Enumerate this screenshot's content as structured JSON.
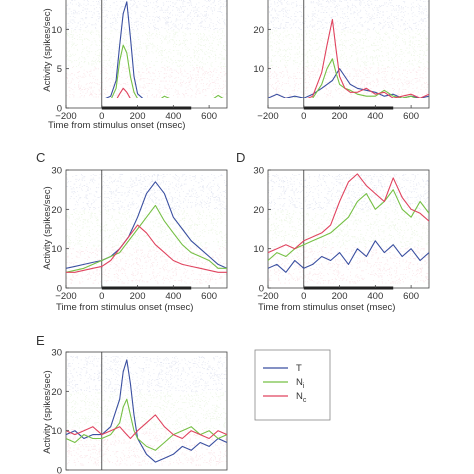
{
  "chart_data": [
    {
      "type": "line",
      "panel_label": "",
      "ylabel": "Activity (spikes/sec)",
      "xlabel": "Time from stimulus onset (msec)",
      "xlim": [
        -200,
        700
      ],
      "ylim": [
        0,
        15
      ],
      "xticks": [
        "−200",
        "0",
        "200",
        "400",
        "600"
      ],
      "yticks": [
        "0",
        "5",
        "10"
      ],
      "stimulus_bar": [
        0,
        500
      ],
      "x": [
        -200,
        -150,
        -100,
        -50,
        0,
        50,
        80,
        100,
        120,
        140,
        160,
        180,
        200,
        250,
        300,
        350,
        400,
        450,
        500,
        550,
        600,
        650,
        700
      ],
      "series": [
        {
          "name": "T",
          "color": "#3a4fa0",
          "values": [
            1.0,
            0.8,
            1.1,
            0.7,
            1.0,
            1.5,
            3.5,
            8.0,
            12.0,
            13.5,
            9.0,
            4.0,
            1.8,
            0.8,
            0.6,
            0.8,
            0.9,
            0.7,
            1.0,
            0.6,
            0.8,
            1.0,
            0.7
          ]
        },
        {
          "name": "Ni",
          "color": "#76c045",
          "values": [
            0.6,
            0.8,
            0.5,
            0.7,
            0.8,
            1.0,
            2.5,
            6.0,
            8.0,
            7.0,
            4.0,
            2.0,
            1.2,
            0.8,
            0.7,
            1.5,
            1.0,
            0.6,
            0.9,
            0.7,
            0.8,
            1.6,
            0.9
          ]
        },
        {
          "name": "Nc",
          "color": "#e0445f",
          "values": [
            0.3,
            0.4,
            0.3,
            0.5,
            0.4,
            0.6,
            1.0,
            1.8,
            2.5,
            2.0,
            1.2,
            0.8,
            0.6,
            0.5,
            0.7,
            0.6,
            0.5,
            0.8,
            0.4,
            0.6,
            0.5,
            0.4,
            0.6
          ]
        }
      ]
    },
    {
      "type": "line",
      "panel_label": "",
      "ylabel": "",
      "xlabel": "",
      "xlim": [
        -200,
        700
      ],
      "ylim": [
        0,
        30
      ],
      "xticks": [
        "−200",
        "0",
        "200",
        "400",
        "600"
      ],
      "yticks": [
        "10",
        "20"
      ],
      "stimulus_bar": [
        0,
        500
      ],
      "x": [
        -200,
        -150,
        -100,
        -50,
        0,
        50,
        100,
        130,
        160,
        180,
        200,
        230,
        260,
        300,
        350,
        400,
        450,
        500,
        550,
        600,
        650,
        700
      ],
      "series": [
        {
          "name": "T",
          "color": "#3a4fa0",
          "values": [
            2.5,
            3.5,
            2.5,
            3.0,
            2.5,
            3.5,
            5.0,
            6.0,
            7.0,
            8.5,
            10.0,
            8.0,
            6.0,
            5.0,
            4.5,
            4.0,
            3.0,
            3.5,
            2.5,
            3.0,
            2.5,
            3.0
          ]
        },
        {
          "name": "Ni",
          "color": "#76c045",
          "values": [
            1.5,
            2.0,
            1.5,
            2.5,
            2.0,
            2.5,
            6.0,
            10.0,
            12.5,
            9.0,
            6.0,
            5.0,
            4.5,
            3.5,
            3.0,
            3.0,
            4.5,
            3.0,
            2.5,
            3.0,
            2.0,
            2.5
          ]
        },
        {
          "name": "Nc",
          "color": "#e0445f",
          "values": [
            2.0,
            1.5,
            2.5,
            1.5,
            2.0,
            3.0,
            9.0,
            16.0,
            22.5,
            15.0,
            8.0,
            5.0,
            4.0,
            4.0,
            5.0,
            3.5,
            4.0,
            2.5,
            3.0,
            3.5,
            2.5,
            3.5
          ]
        }
      ]
    },
    {
      "type": "line",
      "panel_label": "C",
      "ylabel": "Activity (spikes/sec)",
      "xlabel": "Time from stimulus onset (msec)",
      "xlim": [
        -200,
        700
      ],
      "ylim": [
        0,
        30
      ],
      "xticks": [
        "−200",
        "0",
        "200",
        "400",
        "600"
      ],
      "yticks": [
        "0",
        "10",
        "20",
        "30"
      ],
      "stimulus_bar": [
        0,
        500
      ],
      "x": [
        -200,
        -150,
        -100,
        -50,
        0,
        50,
        100,
        150,
        200,
        250,
        300,
        350,
        400,
        450,
        500,
        550,
        600,
        650,
        700
      ],
      "series": [
        {
          "name": "T",
          "color": "#3a4fa0",
          "values": [
            5,
            5.5,
            6,
            6.5,
            7,
            8,
            10,
            13,
            18,
            24,
            27,
            24,
            18,
            15,
            12,
            10,
            8,
            6,
            5
          ]
        },
        {
          "name": "Ni",
          "color": "#76c045",
          "values": [
            4,
            4.5,
            5,
            6,
            7,
            8,
            9,
            12,
            15,
            18,
            21,
            17,
            14,
            11,
            9,
            8,
            7,
            5,
            5
          ]
        },
        {
          "name": "Nc",
          "color": "#e0445f",
          "values": [
            4,
            4,
            4.5,
            5,
            5.5,
            7,
            10,
            13,
            16,
            14,
            11,
            9,
            7,
            6,
            5.5,
            5,
            4.5,
            4,
            4
          ]
        }
      ]
    },
    {
      "type": "line",
      "panel_label": "D",
      "ylabel": "",
      "xlabel": "Time from stimulus onset (msec)",
      "xlim": [
        -200,
        700
      ],
      "ylim": [
        0,
        30
      ],
      "xticks": [
        "−200",
        "0",
        "200",
        "400",
        "600"
      ],
      "yticks": [
        "0",
        "10",
        "20",
        "30"
      ],
      "stimulus_bar": [
        0,
        500
      ],
      "x": [
        -200,
        -150,
        -100,
        -50,
        0,
        50,
        100,
        150,
        200,
        250,
        300,
        350,
        400,
        450,
        500,
        550,
        600,
        650,
        700
      ],
      "series": [
        {
          "name": "T",
          "color": "#3a4fa0",
          "values": [
            5,
            6,
            4,
            7,
            5,
            6,
            8,
            7,
            9,
            6,
            10,
            8,
            12,
            9,
            11,
            8,
            10,
            7,
            9
          ]
        },
        {
          "name": "Ni",
          "color": "#76c045",
          "values": [
            7,
            9,
            8,
            10,
            11,
            12,
            13,
            14,
            16,
            18,
            22,
            24,
            20,
            22,
            25,
            20,
            18,
            22,
            19
          ]
        },
        {
          "name": "Nc",
          "color": "#e0445f",
          "values": [
            9,
            10,
            11,
            10,
            12,
            13,
            14,
            16,
            22,
            27,
            29,
            26,
            24,
            22,
            28,
            23,
            20,
            19,
            17
          ]
        }
      ]
    },
    {
      "type": "line",
      "panel_label": "E",
      "ylabel": "Activity (spikes/sec)",
      "xlabel": "",
      "xlim": [
        -200,
        700
      ],
      "ylim": [
        0,
        30
      ],
      "xticks": [],
      "yticks": [
        "0",
        "10",
        "20",
        "30"
      ],
      "stimulus_bar": null,
      "x": [
        -200,
        -150,
        -100,
        -50,
        0,
        50,
        100,
        120,
        140,
        160,
        180,
        200,
        250,
        300,
        350,
        400,
        450,
        500,
        550,
        600,
        650,
        700
      ],
      "series": [
        {
          "name": "T",
          "color": "#3a4fa0",
          "values": [
            9,
            10,
            8,
            9,
            9,
            11,
            18,
            25,
            28,
            22,
            14,
            8,
            4,
            2,
            3,
            4,
            6,
            5,
            7,
            6,
            8,
            7
          ]
        },
        {
          "name": "Ni",
          "color": "#76c045",
          "values": [
            8,
            7,
            9,
            8,
            8,
            9,
            12,
            16,
            18,
            14,
            10,
            8,
            6,
            5,
            7,
            9,
            10,
            11,
            9,
            10,
            8,
            9
          ]
        },
        {
          "name": "Nc",
          "color": "#e0445f",
          "values": [
            10,
            9,
            10,
            11,
            9,
            10,
            11,
            10,
            9,
            8,
            9,
            10,
            12,
            14,
            11,
            9,
            8,
            10,
            9,
            8,
            10,
            9
          ]
        }
      ]
    }
  ],
  "legend": [
    {
      "label": "T",
      "color": "#3a4fa0"
    },
    {
      "label": "Ni",
      "label_main": "N",
      "label_sub": "i",
      "color": "#76c045"
    },
    {
      "label": "Nc",
      "label_main": "N",
      "label_sub": "c",
      "color": "#e0445f"
    }
  ]
}
